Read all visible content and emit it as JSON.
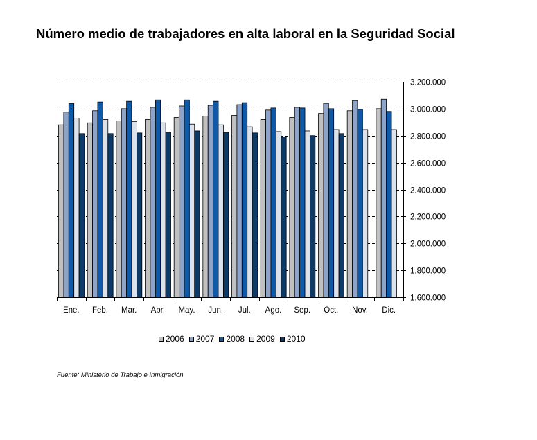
{
  "chart_data": {
    "type": "bar",
    "title": "Número medio de trabajadores en alta laboral en la Seguridad Social",
    "categories": [
      "Ene.",
      "Feb.",
      "Mar.",
      "Abr.",
      "May.",
      "Jun.",
      "Jul.",
      "Ago.",
      "Sep.",
      "Oct.",
      "Nov.",
      "Dic."
    ],
    "series": [
      {
        "name": "2006",
        "color": "#c0c0c0",
        "values": [
          2880000,
          2895000,
          2910000,
          2920000,
          2935000,
          2945000,
          2950000,
          2920000,
          2935000,
          2965000,
          2985000,
          3000000
        ]
      },
      {
        "name": "2007",
        "color": "#8da4c8",
        "values": [
          2975000,
          2985000,
          3000000,
          3010000,
          3020000,
          3025000,
          3030000,
          2990000,
          3010000,
          3040000,
          3060000,
          3070000
        ]
      },
      {
        "name": "2008",
        "color": "#0f5aa8",
        "values": [
          3040000,
          3050000,
          3055000,
          3065000,
          3065000,
          3055000,
          3045000,
          3005000,
          3005000,
          3000000,
          2995000,
          2980000
        ]
      },
      {
        "name": "2009",
        "color": "#dce2ec",
        "values": [
          2930000,
          2920000,
          2905000,
          2895000,
          2885000,
          2880000,
          2865000,
          2830000,
          2835000,
          2845000,
          2845000,
          2845000
        ]
      },
      {
        "name": "2010",
        "color": "#0d3a66",
        "values": [
          2815000,
          2815000,
          2820000,
          2825000,
          2835000,
          2825000,
          2820000,
          2790000,
          2800000,
          2815000,
          null,
          null
        ]
      }
    ],
    "ylim": [
      1600000,
      3200000
    ],
    "yticks": [
      "1.600.000",
      "1.800.000",
      "2.000.000",
      "2.200.000",
      "2.400.000",
      "2.600.000",
      "2.800.000",
      "3.000.000",
      "3.200.000"
    ],
    "ytick_values": [
      1600000,
      1800000,
      2000000,
      2200000,
      2400000,
      2600000,
      2800000,
      3000000,
      3200000
    ],
    "y_axis_side": "right",
    "grid": "dashed-horizontal",
    "legend_position": "bottom",
    "xlabel": "",
    "ylabel": ""
  },
  "footer": {
    "source": "Fuente: Ministerio de Trabajo e Inmigración"
  }
}
